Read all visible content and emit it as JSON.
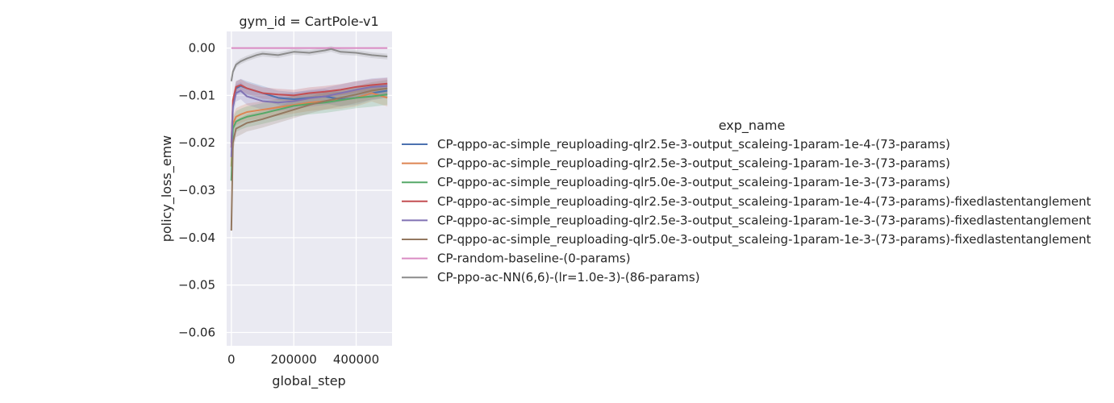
{
  "chart_data": {
    "type": "line",
    "title": "gym_id = CartPole-v1",
    "xlabel": "global_step",
    "ylabel": "policy_loss_emw",
    "xlim": [
      -15000,
      515000
    ],
    "ylim": [
      -0.0628,
      0.0035
    ],
    "x_ticks": [
      0,
      200000,
      400000
    ],
    "x_tick_labels": [
      "0",
      "200000",
      "400000"
    ],
    "y_ticks": [
      0.0,
      -0.01,
      -0.02,
      -0.03,
      -0.04,
      -0.05,
      -0.06
    ],
    "y_tick_labels": [
      "0.00",
      "−0.01",
      "−0.02",
      "−0.03",
      "−0.04",
      "−0.05",
      "−0.06"
    ],
    "grid": true,
    "background": "#eaeaf2",
    "legend_title": "exp_name",
    "legend_placement": "right",
    "series": [
      {
        "name": "CP-qppo-ac-simple_reuploading-qlr2.5e-3-output_scaleing-1param-1e-4-(73-params)",
        "color": "#4c72b0",
        "x": [
          0,
          5000,
          15000,
          30000,
          50000,
          100000,
          150000,
          200000,
          250000,
          300000,
          350000,
          400000,
          450000,
          500000
        ],
        "y": [
          -0.02,
          -0.012,
          -0.0085,
          -0.008,
          -0.0085,
          -0.0095,
          -0.0105,
          -0.0108,
          -0.0105,
          -0.0102,
          -0.0108,
          -0.0105,
          -0.0095,
          -0.009
        ],
        "band": 0.0015
      },
      {
        "name": "CP-qppo-ac-simple_reuploading-qlr2.5e-3-output_scaleing-1param-1e-3-(73-params)",
        "color": "#dd8452",
        "x": [
          0,
          5000,
          15000,
          30000,
          50000,
          100000,
          150000,
          200000,
          250000,
          300000,
          350000,
          400000,
          450000,
          500000
        ],
        "y": [
          -0.025,
          -0.016,
          -0.0145,
          -0.014,
          -0.0135,
          -0.013,
          -0.0125,
          -0.012,
          -0.0115,
          -0.0112,
          -0.011,
          -0.0105,
          -0.0095,
          -0.0105
        ],
        "band": 0.0018
      },
      {
        "name": "CP-qppo-ac-simple_reuploading-qlr5.0e-3-output_scaleing-1param-1e-3-(73-params)",
        "color": "#55a868",
        "x": [
          0,
          5000,
          15000,
          30000,
          50000,
          100000,
          150000,
          200000,
          250000,
          300000,
          350000,
          400000,
          450000,
          500000
        ],
        "y": [
          -0.028,
          -0.017,
          -0.0155,
          -0.015,
          -0.0145,
          -0.0138,
          -0.013,
          -0.0122,
          -0.0118,
          -0.0115,
          -0.011,
          -0.0105,
          -0.0102,
          -0.0098
        ],
        "band": 0.0022
      },
      {
        "name": "CP-qppo-ac-simple_reuploading-qlr2.5e-3-output_scaleing-1param-1e-4-(73-params)-fixedlastentanglement",
        "color": "#c44e52",
        "x": [
          0,
          5000,
          15000,
          30000,
          50000,
          100000,
          150000,
          200000,
          250000,
          300000,
          350000,
          400000,
          450000,
          500000
        ],
        "y": [
          -0.021,
          -0.011,
          -0.0082,
          -0.0078,
          -0.0085,
          -0.0095,
          -0.0098,
          -0.01,
          -0.0095,
          -0.0092,
          -0.0088,
          -0.0082,
          -0.0078,
          -0.0075
        ],
        "band": 0.0012
      },
      {
        "name": "CP-qppo-ac-simple_reuploading-qlr2.5e-3-output_scaleing-1param-1e-3-(73-params)-fixedlastentanglement",
        "color": "#8172b3",
        "x": [
          0,
          5000,
          15000,
          30000,
          50000,
          100000,
          150000,
          200000,
          250000,
          300000,
          350000,
          400000,
          450000,
          500000
        ],
        "y": [
          -0.023,
          -0.0125,
          -0.0095,
          -0.009,
          -0.0102,
          -0.0112,
          -0.0115,
          -0.0112,
          -0.0106,
          -0.0102,
          -0.0095,
          -0.0088,
          -0.0082,
          -0.008
        ],
        "band": 0.0018
      },
      {
        "name": "CP-qppo-ac-simple_reuploading-qlr5.0e-3-output_scaleing-1param-1e-3-(73-params)-fixedlastentanglement",
        "color": "#937860",
        "x": [
          0,
          5000,
          15000,
          30000,
          50000,
          100000,
          150000,
          200000,
          250000,
          300000,
          350000,
          400000,
          450000,
          500000
        ],
        "y": [
          -0.0385,
          -0.02,
          -0.017,
          -0.0165,
          -0.0158,
          -0.015,
          -0.014,
          -0.013,
          -0.012,
          -0.0112,
          -0.0105,
          -0.0098,
          -0.009,
          -0.0085
        ],
        "band": 0.0018
      },
      {
        "name": "CP-random-baseline-(0-params)",
        "color": "#da8bc3",
        "x": [
          0,
          500000
        ],
        "y": [
          0.0,
          0.0
        ],
        "band": 0.0
      },
      {
        "name": "CP-ppo-ac-NN(6,6)-(lr=1.0e-3)-(86-params)",
        "color": "#8c8c8c",
        "x": [
          0,
          5000,
          15000,
          30000,
          50000,
          80000,
          100000,
          150000,
          200000,
          250000,
          300000,
          320000,
          350000,
          400000,
          450000,
          500000
        ],
        "y": [
          -0.007,
          -0.005,
          -0.0035,
          -0.0028,
          -0.0022,
          -0.0015,
          -0.0012,
          -0.0015,
          -0.0008,
          -0.001,
          -0.0005,
          -0.0002,
          -0.0008,
          -0.001,
          -0.0015,
          -0.0018
        ],
        "band": 0.0006
      }
    ]
  }
}
